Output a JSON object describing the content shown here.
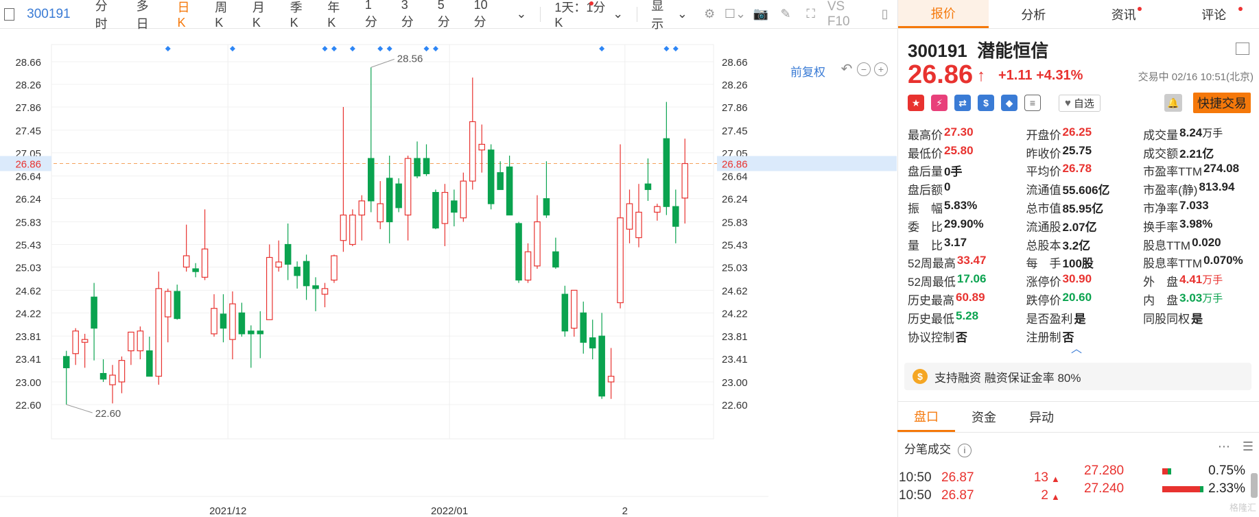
{
  "toolbar": {
    "code": "300191",
    "periods": [
      "分时",
      "多日",
      "日K",
      "周K",
      "月K",
      "季K",
      "年K",
      "1分",
      "3分",
      "5分",
      "10分"
    ],
    "active_period": "日K",
    "interval": "1天：1分K",
    "display": "显示",
    "tool_text": "VS F10"
  },
  "chart": {
    "fq_label": "前复权",
    "current_price_label": "26.86",
    "max_label": "28.56",
    "min_label": "22.60"
  },
  "chart_data": {
    "type": "candlestick",
    "y_ticks": [
      "28.66",
      "28.26",
      "27.86",
      "27.45",
      "27.05",
      "26.64",
      "26.24",
      "25.83",
      "25.43",
      "25.03",
      "24.62",
      "24.22",
      "23.81",
      "23.41",
      "23.00",
      "22.60"
    ],
    "ylim": [
      22.6,
      28.66
    ],
    "x_labels": [
      "2021/12",
      "2022/01",
      "2"
    ],
    "current_price": 26.86,
    "candles": [
      {
        "o": 23.45,
        "h": 23.55,
        "l": 22.6,
        "c": 23.25
      },
      {
        "o": 23.5,
        "h": 23.95,
        "l": 23.3,
        "c": 23.9
      },
      {
        "o": 23.7,
        "h": 23.85,
        "l": 23.25,
        "c": 23.75
      },
      {
        "o": 24.5,
        "h": 24.75,
        "l": 23.38,
        "c": 23.95
      },
      {
        "o": 23.15,
        "h": 23.4,
        "l": 23.0,
        "c": 23.05
      },
      {
        "o": 22.95,
        "h": 23.3,
        "l": 22.62,
        "c": 23.12
      },
      {
        "o": 23.0,
        "h": 23.45,
        "l": 22.8,
        "c": 23.38
      },
      {
        "o": 23.55,
        "h": 23.88,
        "l": 23.3,
        "c": 23.88
      },
      {
        "o": 23.55,
        "h": 23.98,
        "l": 23.4,
        "c": 23.9
      },
      {
        "o": 23.55,
        "h": 23.8,
        "l": 23.1,
        "c": 23.1
      },
      {
        "o": 23.1,
        "h": 24.95,
        "l": 22.95,
        "c": 24.65
      },
      {
        "o": 24.15,
        "h": 24.65,
        "l": 23.7,
        "c": 24.6
      },
      {
        "o": 24.6,
        "h": 24.72,
        "l": 24.1,
        "c": 24.12
      },
      {
        "o": 25.03,
        "h": 25.78,
        "l": 24.95,
        "c": 25.23
      },
      {
        "o": 25.0,
        "h": 25.1,
        "l": 24.85,
        "c": 24.95
      },
      {
        "o": 24.85,
        "h": 26.05,
        "l": 24.8,
        "c": 25.35
      },
      {
        "o": 23.85,
        "h": 24.55,
        "l": 23.8,
        "c": 24.3
      },
      {
        "o": 24.2,
        "h": 24.55,
        "l": 23.7,
        "c": 23.95
      },
      {
        "o": 23.75,
        "h": 24.6,
        "l": 23.4,
        "c": 24.38
      },
      {
        "o": 24.22,
        "h": 24.4,
        "l": 23.8,
        "c": 23.85
      },
      {
        "o": 23.9,
        "h": 24.0,
        "l": 23.25,
        "c": 23.85
      },
      {
        "o": 23.9,
        "h": 24.25,
        "l": 23.42,
        "c": 23.85
      },
      {
        "o": 24.1,
        "h": 25.43,
        "l": 24.1,
        "c": 25.2
      },
      {
        "o": 25.03,
        "h": 25.5,
        "l": 24.95,
        "c": 25.12
      },
      {
        "o": 25.43,
        "h": 25.8,
        "l": 24.8,
        "c": 25.08
      },
      {
        "o": 25.03,
        "h": 25.13,
        "l": 24.65,
        "c": 24.88
      },
      {
        "o": 25.13,
        "h": 25.25,
        "l": 24.45,
        "c": 24.7
      },
      {
        "o": 24.7,
        "h": 24.85,
        "l": 24.25,
        "c": 24.65
      },
      {
        "o": 24.55,
        "h": 24.75,
        "l": 24.32,
        "c": 24.65
      },
      {
        "o": 24.8,
        "h": 25.25,
        "l": 24.75,
        "c": 25.23
      },
      {
        "o": 25.5,
        "h": 27.86,
        "l": 25.3,
        "c": 25.95
      },
      {
        "o": 25.43,
        "h": 26.05,
        "l": 25.4,
        "c": 25.95
      },
      {
        "o": 25.95,
        "h": 26.3,
        "l": 25.5,
        "c": 26.2
      },
      {
        "o": 26.95,
        "h": 28.56,
        "l": 26.0,
        "c": 26.2
      },
      {
        "o": 25.83,
        "h": 26.55,
        "l": 25.7,
        "c": 26.15
      },
      {
        "o": 26.6,
        "h": 27.0,
        "l": 25.45,
        "c": 25.83
      },
      {
        "o": 26.5,
        "h": 26.6,
        "l": 26.0,
        "c": 26.08
      },
      {
        "o": 25.95,
        "h": 27.0,
        "l": 25.5,
        "c": 26.95
      },
      {
        "o": 26.95,
        "h": 27.25,
        "l": 26.6,
        "c": 26.64
      },
      {
        "o": 26.95,
        "h": 27.2,
        "l": 26.64,
        "c": 26.68
      },
      {
        "o": 26.35,
        "h": 26.4,
        "l": 25.7,
        "c": 25.72
      },
      {
        "o": 25.8,
        "h": 26.5,
        "l": 25.4,
        "c": 26.35
      },
      {
        "o": 26.2,
        "h": 26.4,
        "l": 25.75,
        "c": 26.0
      },
      {
        "o": 25.9,
        "h": 26.7,
        "l": 25.83,
        "c": 26.55
      },
      {
        "o": 26.55,
        "h": 28.38,
        "l": 26.4,
        "c": 27.6
      },
      {
        "o": 27.1,
        "h": 27.55,
        "l": 26.7,
        "c": 27.2
      },
      {
        "o": 27.1,
        "h": 27.2,
        "l": 26.05,
        "c": 26.15
      },
      {
        "o": 26.7,
        "h": 26.9,
        "l": 26.4,
        "c": 26.4
      },
      {
        "o": 26.8,
        "h": 27.0,
        "l": 25.95,
        "c": 25.95
      },
      {
        "o": 25.8,
        "h": 25.83,
        "l": 24.75,
        "c": 24.8
      },
      {
        "o": 24.8,
        "h": 25.45,
        "l": 24.75,
        "c": 25.3
      },
      {
        "o": 25.05,
        "h": 26.3,
        "l": 25.0,
        "c": 25.83
      },
      {
        "o": 26.24,
        "h": 26.9,
        "l": 25.9,
        "c": 25.95
      },
      {
        "o": 25.3,
        "h": 25.55,
        "l": 25.0,
        "c": 25.03
      },
      {
        "o": 24.55,
        "h": 24.7,
        "l": 23.8,
        "c": 23.9
      },
      {
        "o": 23.95,
        "h": 24.6,
        "l": 23.8,
        "c": 24.62
      },
      {
        "o": 24.22,
        "h": 24.42,
        "l": 23.5,
        "c": 23.7
      },
      {
        "o": 23.78,
        "h": 24.1,
        "l": 23.4,
        "c": 23.6
      },
      {
        "o": 23.81,
        "h": 24.22,
        "l": 22.7,
        "c": 22.75
      },
      {
        "o": 23.0,
        "h": 23.6,
        "l": 22.7,
        "c": 23.1
      },
      {
        "o": 24.4,
        "h": 27.2,
        "l": 24.3,
        "c": 25.9
      },
      {
        "o": 25.7,
        "h": 26.4,
        "l": 25.45,
        "c": 26.15
      },
      {
        "o": 25.55,
        "h": 26.5,
        "l": 25.38,
        "c": 26.0
      },
      {
        "o": 26.5,
        "h": 26.95,
        "l": 26.2,
        "c": 26.4
      },
      {
        "o": 26.0,
        "h": 26.15,
        "l": 25.85,
        "c": 26.1
      },
      {
        "o": 27.3,
        "h": 27.95,
        "l": 25.95,
        "c": 26.1
      },
      {
        "o": 26.1,
        "h": 26.4,
        "l": 25.45,
        "c": 25.75
      },
      {
        "o": 26.25,
        "h": 27.3,
        "l": 25.8,
        "c": 26.86
      }
    ]
  },
  "panel": {
    "tabs": [
      "报价",
      "分析",
      "资讯",
      "评论"
    ],
    "active_tab": "报价",
    "code": "300191",
    "name": "潜能恒信",
    "price": "26.86",
    "change": "+1.11",
    "change_pct": "+4.31%",
    "status_time": "交易中 02/16 10:51(北京)",
    "zixuan": "自选",
    "quick_trade": "快捷交易",
    "stats": [
      [
        {
          "l": "最高价",
          "v": "27.30",
          "c": "up"
        },
        {
          "l": "开盘价",
          "v": "26.25",
          "c": "up"
        },
        {
          "l": "成交量",
          "v": "8.24",
          "u": "万手",
          "c": ""
        }
      ],
      [
        {
          "l": "最低价",
          "v": "25.80",
          "c": "up"
        },
        {
          "l": "昨收价",
          "v": "25.75",
          "c": ""
        },
        {
          "l": "成交额",
          "v": "2.21亿",
          "c": ""
        }
      ],
      [
        {
          "l": "盘后量",
          "v": "0手",
          "c": ""
        },
        {
          "l": "平均价",
          "v": "26.78",
          "c": "up"
        },
        {
          "l": "市盈率TTM",
          "v": "274.08",
          "c": ""
        }
      ],
      [
        {
          "l": "盘后额",
          "v": "0",
          "c": ""
        },
        {
          "l": "流通值",
          "v": "55.606亿",
          "c": ""
        },
        {
          "l": "市盈率(静)",
          "v": "813.94",
          "c": ""
        }
      ],
      [
        {
          "l": "振　幅",
          "v": "5.83%",
          "c": ""
        },
        {
          "l": "总市值",
          "v": "85.95亿",
          "c": ""
        },
        {
          "l": "市净率",
          "v": "7.033",
          "c": ""
        }
      ],
      [
        {
          "l": "委　比",
          "v": "29.90%",
          "c": ""
        },
        {
          "l": "流通股",
          "v": "2.07亿",
          "c": ""
        },
        {
          "l": "换手率",
          "v": "3.98%",
          "c": ""
        }
      ],
      [
        {
          "l": "量　比",
          "v": "3.17",
          "c": ""
        },
        {
          "l": "总股本",
          "v": "3.2亿",
          "c": ""
        },
        {
          "l": "股息TTM",
          "v": "0.020",
          "c": ""
        }
      ],
      [
        {
          "l": "52周最高",
          "v": "33.47",
          "c": "up"
        },
        {
          "l": "每　手",
          "v": "100股",
          "c": ""
        },
        {
          "l": "股息率TTM",
          "v": "0.070%",
          "c": ""
        }
      ],
      [
        {
          "l": "52周最低",
          "v": "17.06",
          "c": "down"
        },
        {
          "l": "涨停价",
          "v": "30.90",
          "c": "up"
        },
        {
          "l": "外　盘",
          "v": "4.41",
          "u": "万手",
          "c": "up"
        }
      ],
      [
        {
          "l": "历史最高",
          "v": "60.89",
          "c": "up"
        },
        {
          "l": "跌停价",
          "v": "20.60",
          "c": "down"
        },
        {
          "l": "内　盘",
          "v": "3.03",
          "u": "万手",
          "c": "down"
        }
      ],
      [
        {
          "l": "历史最低",
          "v": "5.28",
          "c": "down"
        },
        {
          "l": "是否盈利",
          "v": "是",
          "c": ""
        },
        {
          "l": "同股同权",
          "v": "是",
          "c": ""
        }
      ],
      [
        {
          "l": "协议控制",
          "v": "否",
          "c": ""
        },
        {
          "l": "注册制",
          "v": "否",
          "c": ""
        },
        {
          "l": "",
          "v": "",
          "c": ""
        }
      ]
    ],
    "margin_text": "支持融资 融资保证金率 80%",
    "subtabs": [
      "盘口",
      "资金",
      "异动"
    ],
    "active_subtab": "盘口",
    "trades_title": "分笔成交",
    "trades": [
      {
        "t": "10:50",
        "p": "26.87",
        "v": "13"
      },
      {
        "t": "10:50",
        "p": "26.87",
        "v": "2"
      }
    ],
    "depth": [
      {
        "p": "27.280",
        "pct": "0.75%",
        "frac": 0.17
      },
      {
        "p": "27.240",
        "pct": "2.33%",
        "frac": 0.8
      }
    ],
    "watermark": "格隆汇"
  }
}
